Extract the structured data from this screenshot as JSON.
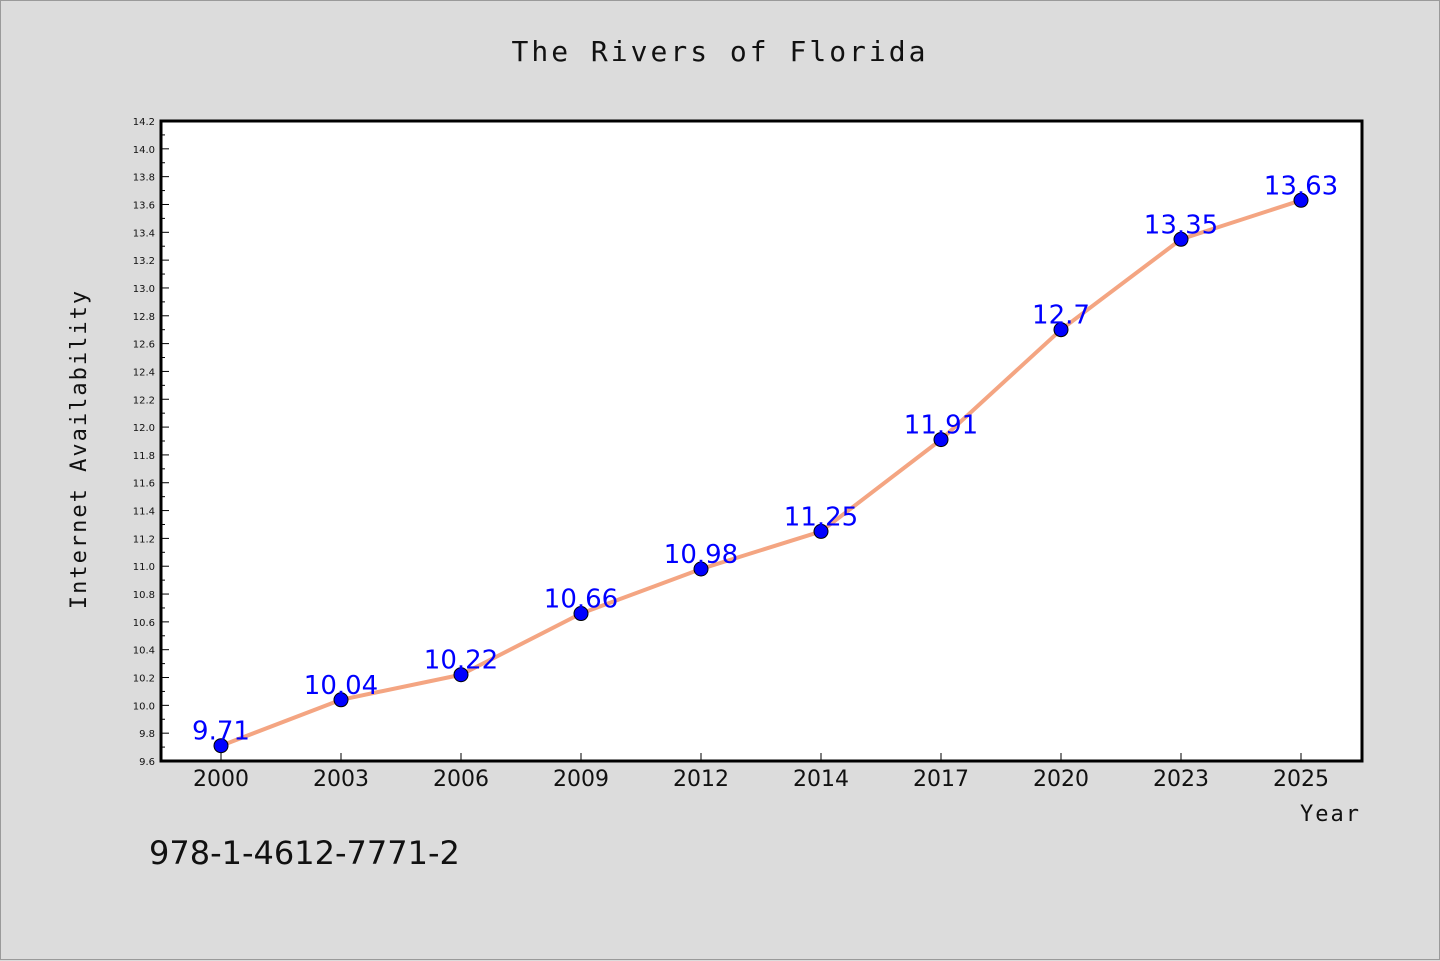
{
  "chart_data": {
    "type": "line",
    "title": "The Rivers of Florida",
    "xlabel": "Year",
    "ylabel": "Internet Availability",
    "categories": [
      "2000",
      "2003",
      "2006",
      "2009",
      "2012",
      "2014",
      "2017",
      "2020",
      "2023",
      "2025"
    ],
    "series": [
      {
        "values": [
          9.71,
          10.04,
          10.22,
          10.66,
          10.98,
          11.25,
          11.91,
          12.7,
          13.35,
          13.63
        ]
      }
    ],
    "data_labels": [
      "9.71",
      "10.04",
      "10.22",
      "10.66",
      "10.98",
      "11.25",
      "11.91",
      "12.7",
      "13.35",
      "13.63"
    ],
    "ylim": [
      9.6,
      14.2
    ],
    "yticks": [
      "9.6",
      "9.8",
      "10.0",
      "10.2",
      "10.4",
      "10.6",
      "10.8",
      "11.0",
      "11.2",
      "11.4",
      "11.6",
      "11.8",
      "12.0",
      "12.2",
      "12.4",
      "12.6",
      "12.8",
      "13.0",
      "13.2",
      "13.4",
      "13.6",
      "13.8",
      "14.0",
      "14.2"
    ],
    "grid": false,
    "line_color": "#f4a582",
    "marker_color": "#0000ff",
    "label_color": "#0000ff"
  },
  "footer_code": "978-1-4612-7771-2"
}
